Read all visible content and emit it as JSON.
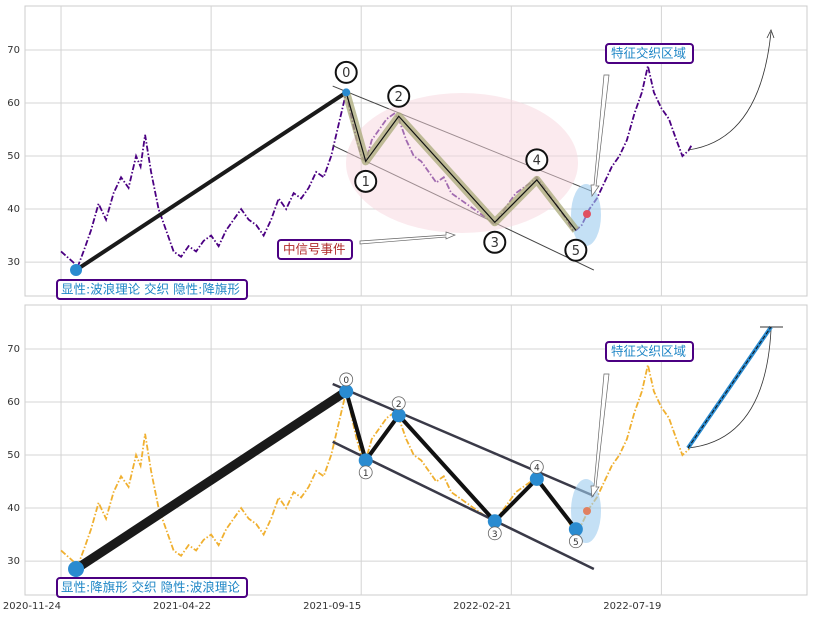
{
  "chart_data": [
    {
      "type": "line",
      "xlim": [
        -24,
        497
      ],
      "ylim": [
        23.6,
        78.3
      ],
      "xticks": [
        0,
        100,
        200,
        300,
        400
      ],
      "yticks": [
        30,
        40,
        50,
        60,
        70
      ],
      "grid": true,
      "x": [
        0,
        4,
        8,
        11,
        15,
        20,
        25,
        30,
        35,
        40,
        45,
        50,
        53,
        56,
        60,
        65,
        70,
        75,
        80,
        85,
        90,
        95,
        100,
        105,
        110,
        115,
        120,
        125,
        130,
        135,
        140,
        145,
        150,
        155,
        160,
        165,
        170,
        175,
        180,
        185,
        190,
        193,
        197,
        200,
        203,
        207,
        212,
        217,
        222,
        225,
        230,
        235,
        240,
        245,
        250,
        255,
        260,
        265,
        270,
        275,
        280,
        285,
        289,
        293,
        298,
        303,
        308,
        313,
        317,
        322,
        327,
        332,
        337,
        341,
        343,
        347,
        352,
        357,
        362,
        367,
        372,
        377,
        382,
        387,
        391,
        395,
        400,
        405,
        410,
        414,
        418,
        420
      ],
      "series": [
        {
          "color": "#4b0082",
          "values": [
            32,
            31,
            30,
            29,
            32,
            36,
            41,
            38,
            43,
            46,
            44,
            50,
            48,
            54,
            47,
            40,
            36,
            32,
            31,
            33,
            32,
            34,
            35,
            33,
            36,
            38,
            40,
            38,
            37,
            35,
            38,
            42,
            40,
            43,
            42,
            44,
            47,
            46,
            50,
            56,
            62,
            58,
            53,
            50,
            49,
            53,
            55,
            57,
            58,
            57,
            53,
            50,
            49,
            47,
            45,
            46,
            43,
            42,
            41,
            40,
            39,
            38,
            37,
            39,
            41,
            43,
            44,
            45,
            46,
            44,
            42,
            40,
            38,
            36,
            36,
            37,
            40,
            42,
            45,
            48,
            50,
            53,
            58,
            62,
            67,
            62,
            59,
            57,
            53,
            50,
            51,
            52
          ]
        }
      ],
      "start": {
        "x": 10,
        "value": 28.5
      },
      "wave": {
        "labels": [
          "0",
          "1",
          "2",
          "3",
          "4",
          "5"
        ],
        "x": [
          190,
          203,
          225,
          289,
          317,
          343
        ],
        "values": [
          62,
          49,
          57.5,
          37.5,
          45.5,
          36
        ]
      },
      "channel": {
        "x": [
          181,
          355
        ],
        "upper": [
          63.2,
          43.2
        ],
        "lower": [
          52.0,
          28.5
        ]
      },
      "annotations": [
        "显性:波浪理论 交织 隐性:降旗形",
        "中信号事件",
        "特征交织区域"
      ]
    },
    {
      "type": "line",
      "xlim": [
        -24,
        497
      ],
      "ylim": [
        23.6,
        78.3
      ],
      "xticks": [
        {
          "value": 0,
          "label": "2020-11-24"
        },
        {
          "value": 100,
          "label": "2021-04-22"
        },
        {
          "value": 200,
          "label": "2021-09-15"
        },
        {
          "value": 300,
          "label": "2022-02-21"
        },
        {
          "value": 400,
          "label": "2022-07-19"
        }
      ],
      "yticks": [
        30,
        40,
        50,
        60,
        70
      ],
      "grid": true,
      "x": [
        0,
        4,
        8,
        11,
        15,
        20,
        25,
        30,
        35,
        40,
        45,
        50,
        53,
        56,
        60,
        65,
        70,
        75,
        80,
        85,
        90,
        95,
        100,
        105,
        110,
        115,
        120,
        125,
        130,
        135,
        140,
        145,
        150,
        155,
        160,
        165,
        170,
        175,
        180,
        185,
        190,
        193,
        197,
        200,
        203,
        207,
        212,
        217,
        222,
        225,
        230,
        235,
        240,
        245,
        250,
        255,
        260,
        265,
        270,
        275,
        280,
        285,
        289,
        293,
        298,
        303,
        308,
        313,
        317,
        322,
        327,
        332,
        337,
        341,
        343,
        347,
        352,
        357,
        362,
        367,
        372,
        377,
        382,
        387,
        391,
        395,
        400,
        405,
        410,
        414,
        418,
        420
      ],
      "series": [
        {
          "color": "#f0b030",
          "values": [
            32,
            31,
            30,
            29,
            32,
            36,
            41,
            38,
            43,
            46,
            44,
            50,
            48,
            54,
            47,
            40,
            36,
            32,
            31,
            33,
            32,
            34,
            35,
            33,
            36,
            38,
            40,
            38,
            37,
            35,
            38,
            42,
            40,
            43,
            42,
            44,
            47,
            46,
            50,
            56,
            62,
            58,
            53,
            50,
            49,
            53,
            55,
            57,
            58,
            57,
            53,
            50,
            49,
            47,
            45,
            46,
            43,
            42,
            41,
            40,
            39,
            38,
            37,
            39,
            41,
            43,
            44,
            45,
            46,
            44,
            42,
            40,
            38,
            36,
            36,
            37,
            40,
            42,
            45,
            48,
            50,
            53,
            58,
            62,
            67,
            62,
            59,
            57,
            53,
            50,
            51,
            52
          ]
        }
      ],
      "start": {
        "x": 10,
        "value": 28.5
      },
      "wave": {
        "labels": [
          "0",
          "1",
          "2",
          "3",
          "4",
          "5"
        ],
        "x": [
          190,
          203,
          225,
          289,
          317,
          343
        ],
        "values": [
          62,
          49,
          57.5,
          37.5,
          45.5,
          36
        ]
      },
      "channel": {
        "x": [
          181,
          355
        ],
        "upper": [
          63.4,
          42.3
        ],
        "lower": [
          52.5,
          28.5
        ]
      },
      "annotations": [
        "显性:降旗形 交织 隐性:波浪理论",
        "特征交织区域"
      ]
    }
  ]
}
